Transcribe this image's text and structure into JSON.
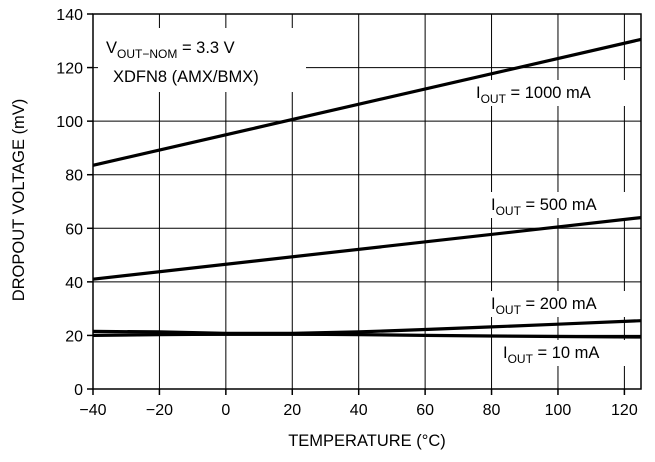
{
  "chart_data": {
    "type": "line",
    "title": "",
    "xlabel": "TEMPERATURE (°C)",
    "ylabel": "DROPOUT VOLTAGE (mV)",
    "xlim": [
      -40,
      125
    ],
    "ylim": [
      0,
      140
    ],
    "xticks": [
      -40,
      -20,
      0,
      20,
      40,
      60,
      80,
      100,
      120
    ],
    "yticks": [
      0,
      20,
      40,
      60,
      80,
      100,
      120,
      140
    ],
    "grid": true,
    "legend": "none",
    "line_color": "#000000",
    "annotation": {
      "line1_main": "V",
      "line1_sub": "OUT−NOM",
      "line1_rest": " = 3.3 V",
      "line2": "XDFN8 (AMX/BMX)"
    },
    "series": [
      {
        "name": "IOUT = 1000 mA",
        "label_main": "I",
        "label_sub": "OUT",
        "label_rest": " = 1000 mA",
        "x": [
          -40,
          125
        ],
        "y": [
          83.5,
          130.5
        ]
      },
      {
        "name": "IOUT = 500 mA",
        "label_main": "I",
        "label_sub": "OUT",
        "label_rest": " = 500 mA",
        "x": [
          -40,
          125
        ],
        "y": [
          41,
          64
        ]
      },
      {
        "name": "IOUT = 200 mA",
        "label_main": "I",
        "label_sub": "OUT",
        "label_rest": " = 200 mA",
        "x": [
          -40,
          -20,
          0,
          20,
          40,
          60,
          80,
          100,
          125
        ],
        "y": [
          21.5,
          21.3,
          20.8,
          20.8,
          21.3,
          22.2,
          23.2,
          24.2,
          25.5
        ]
      },
      {
        "name": "IOUT = 10 mA",
        "label_main": "I",
        "label_sub": "OUT",
        "label_rest": " = 10 mA",
        "x": [
          -40,
          -20,
          0,
          20,
          40,
          60,
          80,
          100,
          125
        ],
        "y": [
          20,
          20.3,
          20.5,
          20.5,
          20.3,
          20,
          19.8,
          19.6,
          19.4
        ]
      }
    ]
  }
}
